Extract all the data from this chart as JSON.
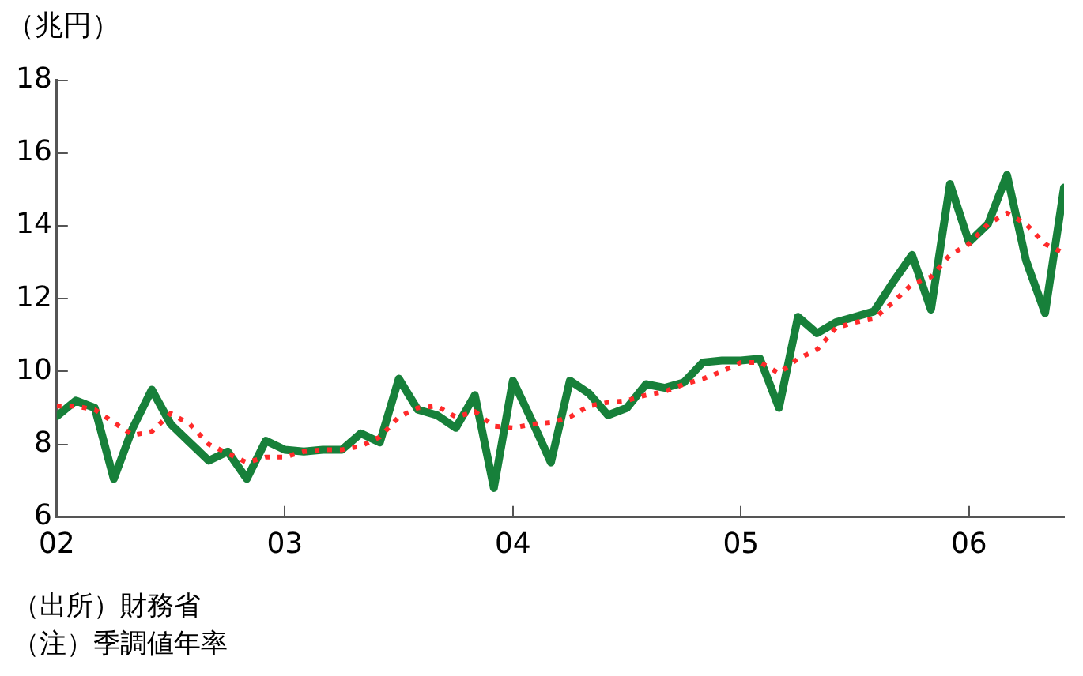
{
  "chart_data": {
    "type": "line",
    "ylabel": "（兆円）",
    "x": [
      "2002-01",
      "2002-02",
      "2002-03",
      "2002-04",
      "2002-05",
      "2002-06",
      "2002-07",
      "2002-08",
      "2002-09",
      "2002-10",
      "2002-11",
      "2002-12",
      "2003-01",
      "2003-02",
      "2003-03",
      "2003-04",
      "2003-05",
      "2003-06",
      "2003-07",
      "2003-08",
      "2003-09",
      "2003-10",
      "2003-11",
      "2003-12",
      "2004-01",
      "2004-02",
      "2004-03",
      "2004-04",
      "2004-05",
      "2004-06",
      "2004-07",
      "2004-08",
      "2004-09",
      "2004-10",
      "2004-11",
      "2004-12",
      "2005-01",
      "2005-02",
      "2005-03",
      "2005-04",
      "2005-05",
      "2005-06",
      "2005-07",
      "2005-08",
      "2005-09",
      "2005-10",
      "2005-11",
      "2005-12",
      "2006-01",
      "2006-02",
      "2006-03",
      "2006-04",
      "2006-05",
      "2006-06"
    ],
    "series": [
      {
        "color": "#17803a",
        "line_style": "solid",
        "values": [
          8.77,
          9.2,
          9.0,
          7.05,
          8.45,
          9.5,
          8.55,
          8.05,
          7.55,
          7.8,
          7.05,
          8.1,
          7.85,
          7.8,
          7.85,
          7.85,
          8.3,
          8.05,
          9.8,
          8.95,
          8.8,
          8.45,
          9.35,
          6.8,
          9.75,
          8.65,
          7.5,
          9.75,
          9.4,
          8.8,
          9.0,
          9.65,
          9.55,
          9.7,
          10.25,
          10.3,
          10.3,
          10.35,
          9.0,
          11.5,
          11.05,
          11.35,
          11.5,
          11.65,
          12.45,
          13.2,
          11.7,
          15.15,
          13.55,
          14.05,
          15.4,
          13.05,
          11.6,
          15.05
        ]
      },
      {
        "color": "#ff2a2a",
        "line_style": "dotted",
        "values": [
          9.05,
          9.05,
          8.95,
          8.6,
          8.25,
          8.35,
          8.85,
          8.55,
          8.0,
          7.75,
          7.5,
          7.65,
          7.65,
          7.8,
          7.85,
          7.85,
          7.95,
          8.2,
          8.75,
          9.0,
          9.05,
          8.75,
          8.9,
          8.5,
          8.45,
          8.55,
          8.6,
          8.75,
          9.05,
          9.15,
          9.2,
          9.35,
          9.45,
          9.65,
          9.8,
          10.0,
          10.25,
          10.25,
          9.95,
          10.35,
          10.6,
          11.2,
          11.35,
          11.45,
          11.9,
          12.4,
          12.6,
          13.2,
          13.5,
          14.05,
          14.35,
          14.05,
          13.5,
          13.25
        ]
      }
    ],
    "xlim": [
      "2002-01",
      "2006-06"
    ],
    "xticks": [
      {
        "value": "2002-01",
        "label": "02"
      },
      {
        "value": "2003-01",
        "label": "03"
      },
      {
        "value": "2004-01",
        "label": "04"
      },
      {
        "value": "2005-01",
        "label": "05"
      },
      {
        "value": "2006-01",
        "label": "06"
      }
    ],
    "ylim": [
      6,
      18
    ],
    "yticks": [
      6,
      8,
      10,
      12,
      14,
      16,
      18
    ],
    "grid": false,
    "legend": false,
    "marker": "none",
    "annotations": [
      "（出所）財務省",
      "（注）季調値年率"
    ]
  }
}
